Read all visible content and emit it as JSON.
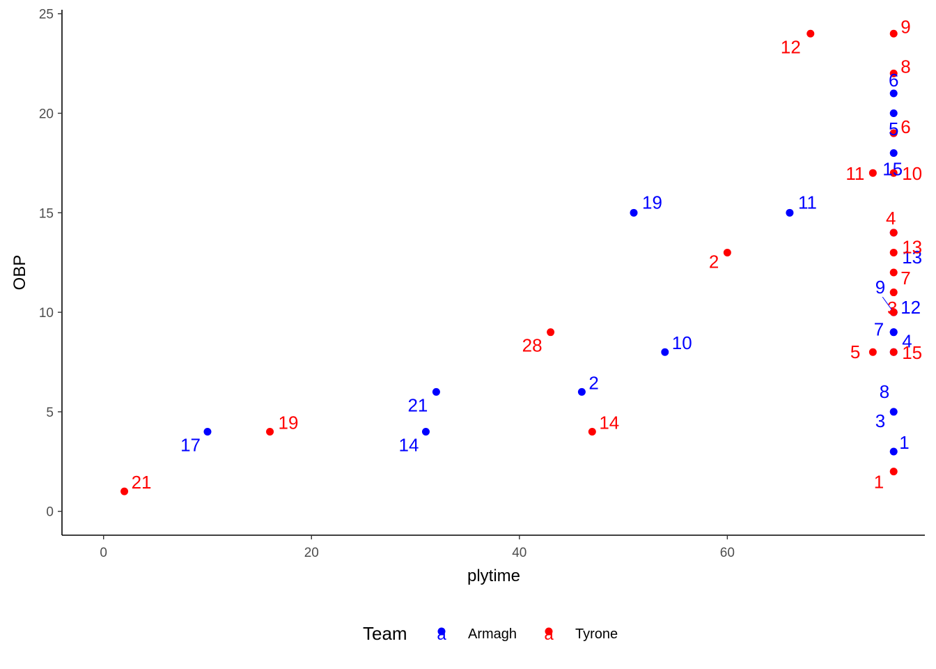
{
  "chart_data": {
    "type": "scatter",
    "title": "",
    "xlabel": "plytime",
    "ylabel": "OBP",
    "xlim": [
      -4,
      79
    ],
    "ylim": [
      -1.2,
      25.2
    ],
    "x_ticks": [
      0,
      20,
      40,
      60
    ],
    "y_ticks": [
      0,
      5,
      10,
      15,
      20,
      25
    ],
    "grid": false,
    "legend": {
      "position": "bottom",
      "title": "Team",
      "key_glyph": "a",
      "entries": [
        {
          "name": "Armagh",
          "color": "#0000ff"
        },
        {
          "name": "Tyrone",
          "color": "#ff0000"
        }
      ]
    },
    "series": [
      {
        "name": "Armagh",
        "color": "#0000ff",
        "points": [
          {
            "x": 76,
            "y": 3,
            "label": "1"
          },
          {
            "x": 46,
            "y": 6,
            "label": "2"
          },
          {
            "x": 76,
            "y": 5,
            "label": "3"
          },
          {
            "x": 76,
            "y": 9,
            "label": "4"
          },
          {
            "x": 76,
            "y": 19,
            "label": "5"
          },
          {
            "x": 76,
            "y": 21,
            "label": "6"
          },
          {
            "x": 76,
            "y": 9,
            "label": "7"
          },
          {
            "x": 76,
            "y": 8,
            "label": "8"
          },
          {
            "x": 76,
            "y": 10,
            "label": "9"
          },
          {
            "x": 54,
            "y": 8,
            "label": "10"
          },
          {
            "x": 66,
            "y": 15,
            "label": "11"
          },
          {
            "x": 76,
            "y": 10,
            "label": "12"
          },
          {
            "x": 76,
            "y": 14,
            "label": "13"
          },
          {
            "x": 31,
            "y": 4,
            "label": "14"
          },
          {
            "x": 76,
            "y": 18,
            "label": "15"
          },
          {
            "x": 10,
            "y": 4,
            "label": "17"
          },
          {
            "x": 51,
            "y": 15,
            "label": "19"
          },
          {
            "x": 32,
            "y": 6,
            "label": "21"
          },
          {
            "x": 76,
            "y": 20,
            "label": ""
          }
        ]
      },
      {
        "name": "Tyrone",
        "color": "#ff0000",
        "points": [
          {
            "x": 76,
            "y": 2,
            "label": "1"
          },
          {
            "x": 60,
            "y": 13,
            "label": "2"
          },
          {
            "x": 76,
            "y": 10,
            "label": "3"
          },
          {
            "x": 76,
            "y": 14,
            "label": "4"
          },
          {
            "x": 74,
            "y": 8,
            "label": "5"
          },
          {
            "x": 76,
            "y": 19,
            "label": "6"
          },
          {
            "x": 76,
            "y": 12,
            "label": "7"
          },
          {
            "x": 76,
            "y": 22,
            "label": "8"
          },
          {
            "x": 76,
            "y": 24,
            "label": "9"
          },
          {
            "x": 76,
            "y": 17,
            "label": "10"
          },
          {
            "x": 74,
            "y": 17,
            "label": "11"
          },
          {
            "x": 68,
            "y": 24,
            "label": "12"
          },
          {
            "x": 76,
            "y": 13,
            "label": "13"
          },
          {
            "x": 47,
            "y": 4,
            "label": "14"
          },
          {
            "x": 76,
            "y": 8,
            "label": "15"
          },
          {
            "x": 16,
            "y": 4,
            "label": "19"
          },
          {
            "x": 2,
            "y": 1,
            "label": "21"
          },
          {
            "x": 43,
            "y": 9,
            "label": "28"
          },
          {
            "x": 76,
            "y": 11,
            "label": ""
          }
        ]
      }
    ]
  }
}
